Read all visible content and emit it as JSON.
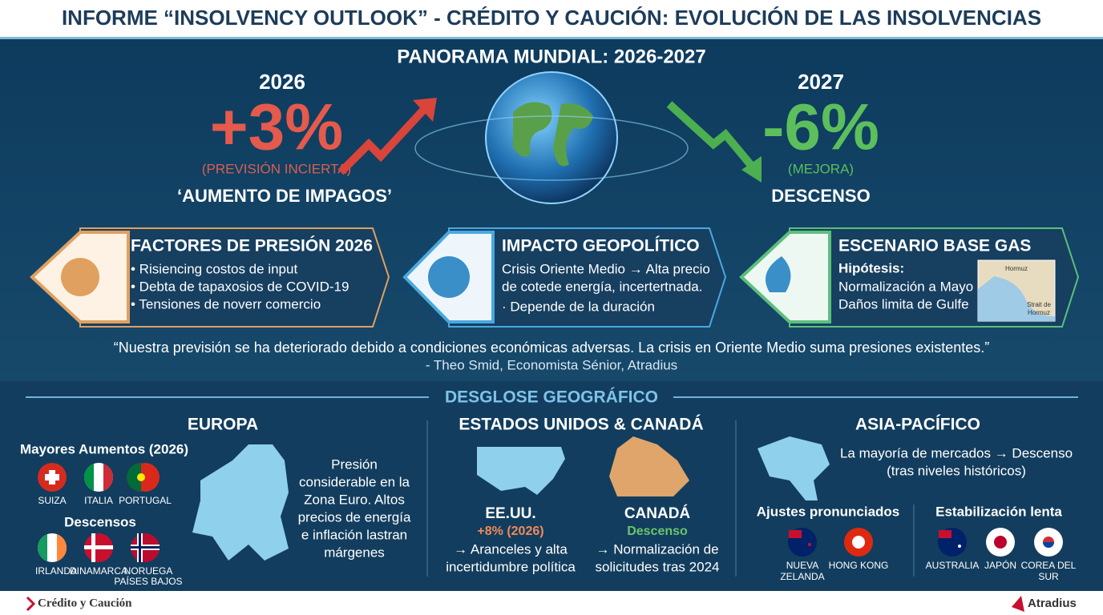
{
  "header": {
    "title": "INFORME “INSOLVENCY OUTLOOK” - CRÉDITO Y CAUCIÓN: EVOLUCIÓN DE LAS INSOLVENCIAS"
  },
  "panorama": {
    "heading": "PANORAMA MUNDIAL: 2026-2027",
    "left": {
      "year": "2026",
      "figure": "+3%",
      "note": "(PREVISIÓN INCIERTA)",
      "label": "‘AUMENTO DE IMPAGOS’"
    },
    "right": {
      "year": "2027",
      "figure": "-6%",
      "note": "(MEJORA)",
      "label": "DESCENSO"
    }
  },
  "cards": [
    {
      "title": "FACTORES DE PRESIÓN 2026",
      "lines": [
        "• Risiencing costos de input",
        "• Debta de tapaxosios de COVID-19",
        "• Tensiones de noverr comercio"
      ]
    },
    {
      "title": "IMPACTO GEOPOLÍTICO",
      "lines": [
        "Crisis Oriente Medio → Alta precio",
        "de cotede energía, incertertnada.",
        "· Depende de la duración"
      ]
    },
    {
      "title": "ESCENARIO BASE GAS",
      "subtitle": "Hipótesis:",
      "lines": [
        "Normalización a Mayo",
        "Daños limita de Gulfe"
      ],
      "map_labels": [
        "Hormuz",
        "Strait de",
        "Hormuz"
      ]
    }
  ],
  "quote": {
    "text": "“Nuestra previsión se ha deteriorado debido a condiciones económicas adversas. La crisis en Oriente Medio suma presiones existentes.”",
    "attribution": "- Theo Smid, Economista Sénior, Atradius"
  },
  "geo": {
    "heading": "DESGLOSE GEOGRÁFICO",
    "europe": {
      "title": "EUROPA",
      "increases_heading": "Mayores Aumentos (2026)",
      "increases": [
        "SUIZA",
        "ITALIA",
        "PORTUGAL"
      ],
      "decreases_heading": "Descensos",
      "decreases": [
        "IRLANDA",
        "DINAMARCA",
        "NORUEGA",
        "PAÍSES BAJOS"
      ],
      "description": [
        "Presión",
        "considerable en la",
        "Zona Euro. Altos",
        "precios de energía",
        "e inflación lastran",
        "márgenes"
      ]
    },
    "north_america": {
      "title": "ESTADOS UNIDOS & CANADÁ",
      "us": {
        "name": "EE.UU.",
        "figure": "+8% (2026)",
        "lines": [
          "→ Aranceles y alta",
          "incertidumbre política"
        ]
      },
      "canada": {
        "name": "CANADÁ",
        "figure": "Descenso",
        "lines": [
          "→ Normalización de",
          "solicitudes tras 2024"
        ]
      }
    },
    "asia": {
      "title": "ASIA-PACÍFICO",
      "summary": [
        "La mayoría de mercados → Descenso",
        "(tras niveles históricos)"
      ],
      "groups": [
        {
          "heading": "Ajustes pronunciados",
          "countries": [
            "NUEVA",
            "ZELANDA",
            "HONG KONG"
          ]
        },
        {
          "heading": "Estabilización lenta",
          "countries": [
            "AUSTRALIA",
            "JAPÓN",
            "COREA DEL",
            "SUR"
          ]
        }
      ]
    }
  },
  "footer": {
    "left": "Crédito y Caución",
    "right": "Atradius"
  }
}
